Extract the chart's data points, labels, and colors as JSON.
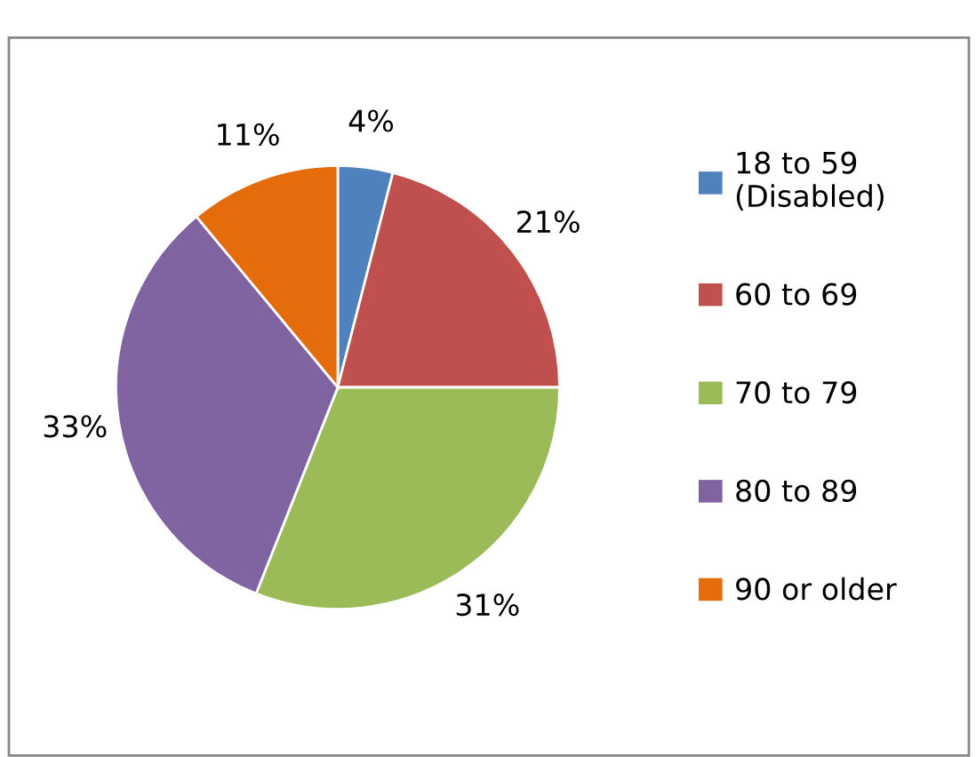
{
  "chart_data": {
    "type": "pie",
    "categories": [
      "18 to 59\n(Disabled)",
      "60 to 69",
      "70 to 79",
      "80 to 89",
      "90 or older"
    ],
    "values": [
      4,
      21,
      31,
      33,
      11
    ],
    "colors": [
      "#4f81bd",
      "#c0504d",
      "#9bbb59",
      "#8064a2",
      "#e46c0a"
    ],
    "value_labels": [
      "4%",
      "21%",
      "31%",
      "33%",
      "11%"
    ],
    "legend": "right"
  }
}
